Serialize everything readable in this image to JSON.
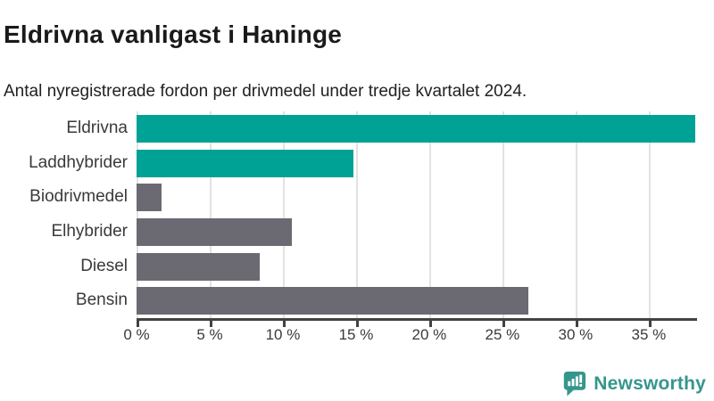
{
  "header": {
    "title": "Eldrivna vanligast i Haninge",
    "subtitle": "Antal nyregistrerade fordon per drivmedel under tredje kvartalet 2024."
  },
  "chart_data": {
    "type": "bar",
    "orientation": "horizontal",
    "title": "Eldrivna vanligast i Haninge",
    "subtitle": "Antal nyregistrerade fordon per drivmedel under tredje kvartalet 2024.",
    "categories": [
      "Eldrivna",
      "Laddhybrider",
      "Biodrivmedel",
      "Elhybrider",
      "Diesel",
      "Bensin"
    ],
    "values": [
      38.2,
      14.8,
      1.7,
      10.6,
      8.4,
      26.8
    ],
    "unit": "%",
    "bar_colors": [
      "#00a295",
      "#00a295",
      "#6b6a72",
      "#6b6a72",
      "#6b6a72",
      "#6b6a72"
    ],
    "xlim": [
      0,
      38.3
    ],
    "xticks": [
      {
        "value": 0,
        "label": "0 %"
      },
      {
        "value": 5,
        "label": "5 %"
      },
      {
        "value": 10,
        "label": "10 %"
      },
      {
        "value": 15,
        "label": "15 %"
      },
      {
        "value": 20,
        "label": "20 %"
      },
      {
        "value": 25,
        "label": "25 %"
      },
      {
        "value": 30,
        "label": "30 %"
      },
      {
        "value": 35,
        "label": "35 %"
      }
    ],
    "grid": "vertical",
    "legend": "none",
    "xlabel": "",
    "ylabel": ""
  },
  "footer": {
    "brand": "Newsworthy"
  },
  "colors": {
    "accent_teal": "#00a295",
    "muted_gray": "#6b6a72",
    "grid": "#e2e2e2",
    "axis": "#424242",
    "title_text": "#1a1a1a",
    "label_text": "#3a3a3a",
    "brand_teal": "#35968c"
  }
}
